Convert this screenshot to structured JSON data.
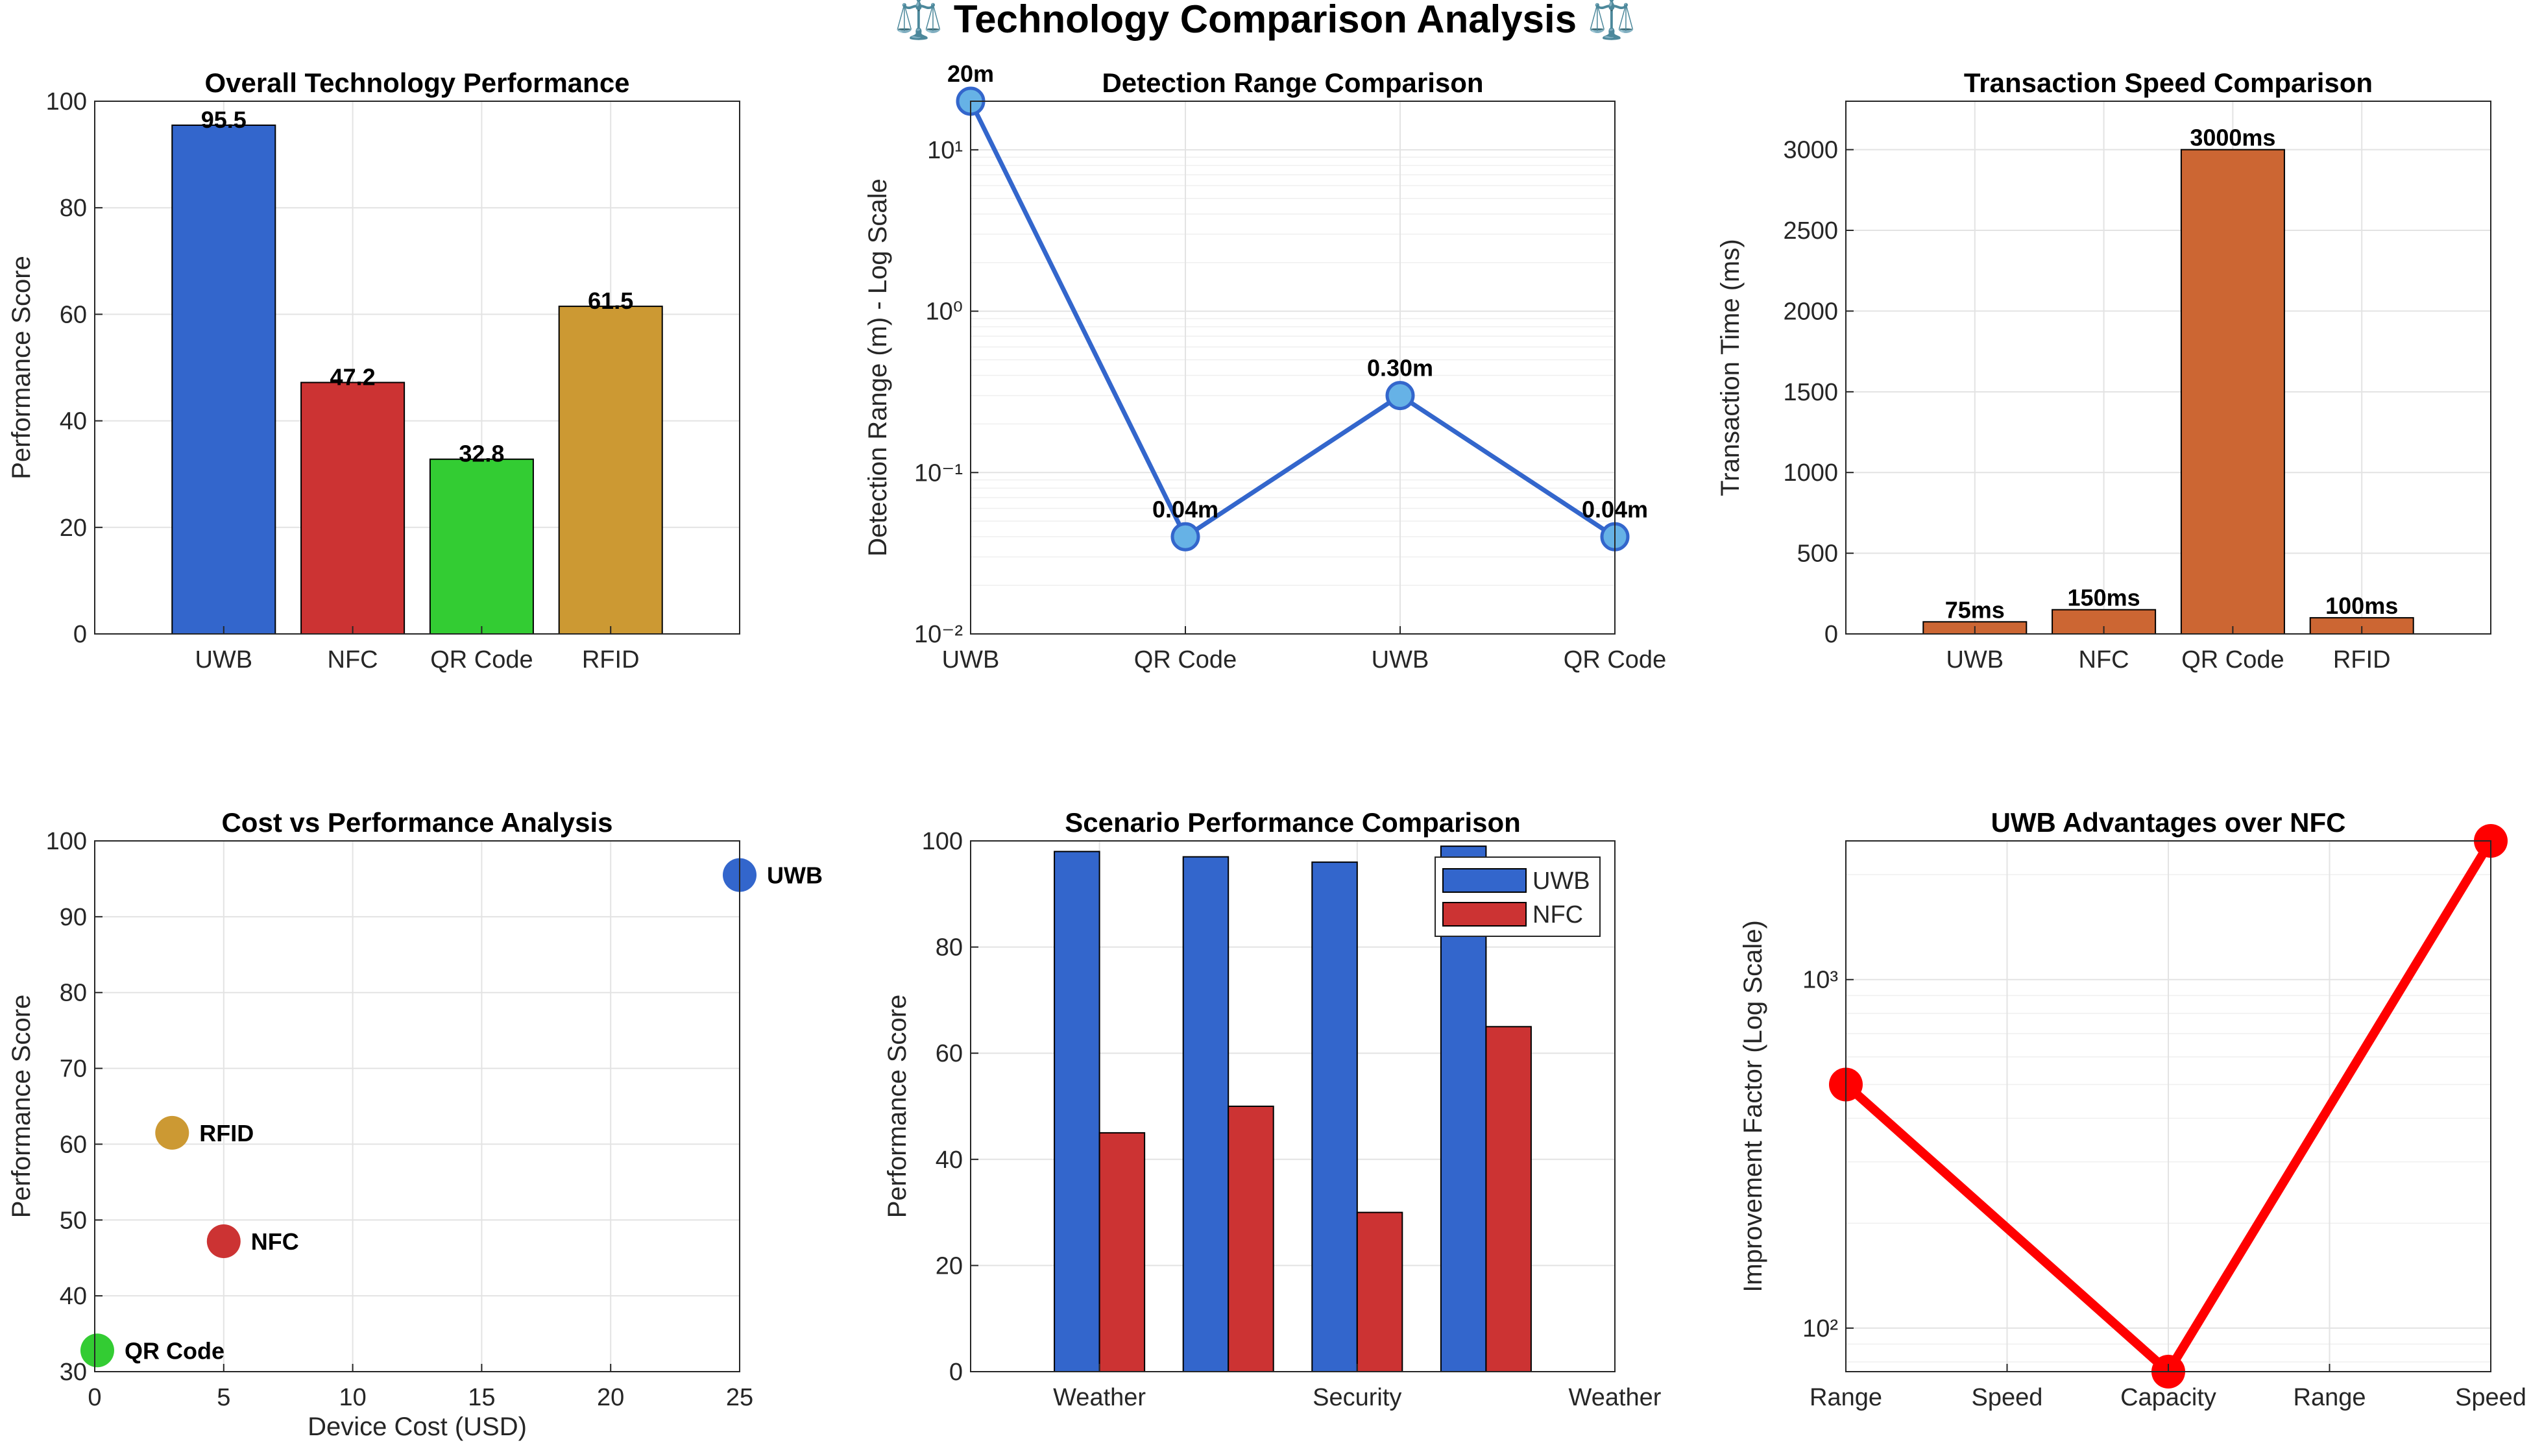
{
  "figure": {
    "title": "⚖️ Technology Comparison Analysis ⚖️"
  },
  "chart_data": [
    {
      "id": "overall",
      "type": "bar",
      "title": "Overall Technology Performance",
      "ylabel": "Performance Score",
      "xlabel": "",
      "categories": [
        "UWB",
        "NFC",
        "QR Code",
        "RFID"
      ],
      "values": [
        95.5,
        47.2,
        32.8,
        61.5
      ],
      "value_labels": [
        "95.5",
        "47.2",
        "32.8",
        "61.5"
      ],
      "colors": [
        "#3366cc",
        "#cc3333",
        "#33cc33",
        "#cc9933"
      ],
      "ylim": [
        0,
        100
      ],
      "yticks": [
        0,
        20,
        40,
        60,
        80,
        100
      ],
      "grid": true
    },
    {
      "id": "range",
      "type": "line",
      "title": "Detection Range Comparison",
      "ylabel": "Detection Range (m) - Log Scale",
      "xlabel": "",
      "yscale": "log",
      "x": [
        1,
        2,
        3,
        4
      ],
      "xtick_labels": [
        "UWB",
        "QR Code",
        "UWB",
        "QR Code"
      ],
      "values": [
        20,
        0.04,
        0.3,
        0.04
      ],
      "value_labels": [
        "20m",
        "0.04m",
        "0.30m",
        "0.04m"
      ],
      "ylim": [
        0.01,
        20
      ],
      "ytick_labels": [
        "10⁻²",
        "10⁻¹",
        "10⁰",
        "10¹"
      ],
      "line_color": "#3366cc",
      "marker_color": "#66b2e6",
      "grid": true
    },
    {
      "id": "speed",
      "type": "bar",
      "title": "Transaction Speed Comparison",
      "ylabel": "Transaction Time (ms)",
      "xlabel": "",
      "categories": [
        "UWB",
        "NFC",
        "QR Code",
        "RFID"
      ],
      "values": [
        75,
        150,
        3000,
        100
      ],
      "value_labels": [
        "75ms",
        "150ms",
        "3000ms",
        "100ms"
      ],
      "color": "#cc6633",
      "ylim": [
        0,
        3300
      ],
      "yticks": [
        0,
        500,
        1000,
        1500,
        2000,
        2500,
        3000
      ],
      "grid": true
    },
    {
      "id": "cost",
      "type": "scatter",
      "title": "Cost vs Performance Analysis",
      "xlabel": "Device Cost (USD)",
      "ylabel": "Performance Score",
      "points": [
        {
          "label": "UWB",
          "x": 25,
          "y": 95.5,
          "color": "#3366cc"
        },
        {
          "label": "NFC",
          "x": 5,
          "y": 47.2,
          "color": "#cc3333"
        },
        {
          "label": "QR Code",
          "x": 0.1,
          "y": 32.8,
          "color": "#33cc33"
        },
        {
          "label": "RFID",
          "x": 3,
          "y": 61.5,
          "color": "#cc9933"
        }
      ],
      "xlim": [
        0,
        25
      ],
      "ylim": [
        30,
        100
      ],
      "xticks": [
        0,
        5,
        10,
        15,
        20,
        25
      ],
      "yticks": [
        30,
        40,
        50,
        60,
        70,
        80,
        90,
        100
      ],
      "grid": true
    },
    {
      "id": "scenario",
      "type": "bar",
      "title": "Scenario Performance Comparison",
      "ylabel": "Performance Score",
      "xlabel": "",
      "x": [
        1,
        2,
        3,
        4
      ],
      "xticks": [
        1,
        3,
        5
      ],
      "xtick_labels": [
        "Weather",
        "Security",
        "Weather"
      ],
      "xlim": [
        0,
        5
      ],
      "series": [
        {
          "name": "UWB",
          "values": [
            98,
            97,
            96,
            99
          ],
          "color": "#3366cc"
        },
        {
          "name": "NFC",
          "values": [
            45,
            50,
            30,
            65
          ],
          "color": "#cc3333"
        }
      ],
      "ylim": [
        0,
        100
      ],
      "yticks": [
        0,
        20,
        40,
        60,
        80,
        100
      ],
      "legend": "top-right",
      "grid": true
    },
    {
      "id": "advantage",
      "type": "line",
      "title": "UWB Advantages over NFC",
      "ylabel": "Improvement Factor (Log Scale)",
      "xlabel": "",
      "yscale": "log",
      "x": [
        1,
        2,
        3
      ],
      "xticks": [
        1,
        1.5,
        2,
        2.5,
        3
      ],
      "xtick_labels": [
        "Range",
        "Speed",
        "Capacity",
        "Range",
        "Speed"
      ],
      "values": [
        500,
        75,
        2500
      ],
      "ylim": [
        75,
        2500
      ],
      "ytick_values": [
        100,
        1000
      ],
      "ytick_labels": [
        "10²",
        "10³"
      ],
      "color": "#ff0000",
      "grid": true
    }
  ]
}
